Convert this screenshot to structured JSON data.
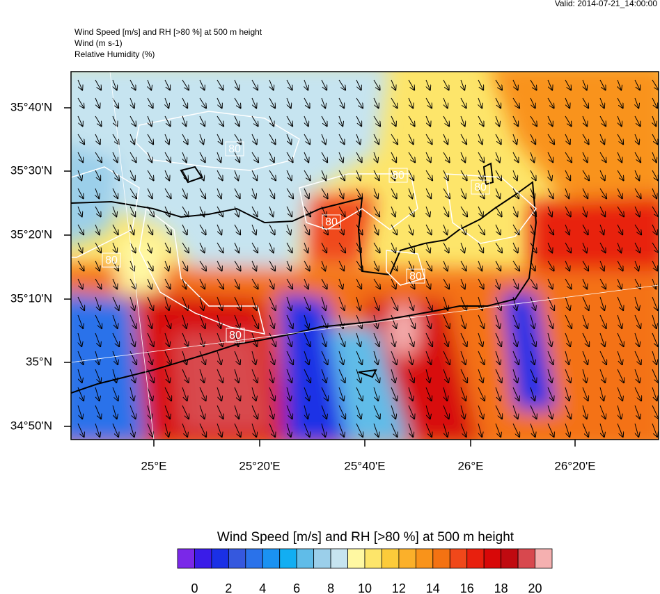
{
  "header": {
    "valid": "Valid: 2014-07-21_14:00:00",
    "lines": [
      "Wind Speed [m/s] and RH [>80 %] at 500 m height",
      "Wind   (m s-1)",
      "Relative Humidity   (%)"
    ]
  },
  "map": {
    "lat_labels": [
      "35°40'N",
      "35°30'N",
      "35°20'N",
      "35°10'N",
      "35°N",
      "34°50'N"
    ],
    "lon_labels": [
      "25°E",
      "25°20'E",
      "25°40'E",
      "26°E",
      "26°20'E"
    ],
    "contour_labels": [
      "80",
      "80",
      "80",
      "80",
      "80",
      "80",
      "80"
    ]
  },
  "colorbar": {
    "title": "Wind Speed [m/s] and RH [>80 %] at 500 m height",
    "colors": [
      "#7a28e8",
      "#3a1ce8",
      "#1a30e6",
      "#3558de",
      "#2a72ea",
      "#1a92f2",
      "#12aef2",
      "#60bce8",
      "#9bcfea",
      "#c6e4f0",
      "#fff8a2",
      "#fde56a",
      "#fccb3a",
      "#fbb02a",
      "#f9931a",
      "#f47212",
      "#f0481a",
      "#e8200e",
      "#d80808",
      "#c00a10",
      "#d8484e",
      "#f5b0b0"
    ],
    "labels": [
      0,
      2,
      4,
      6,
      8,
      10,
      12,
      14,
      16,
      18,
      20
    ]
  }
}
